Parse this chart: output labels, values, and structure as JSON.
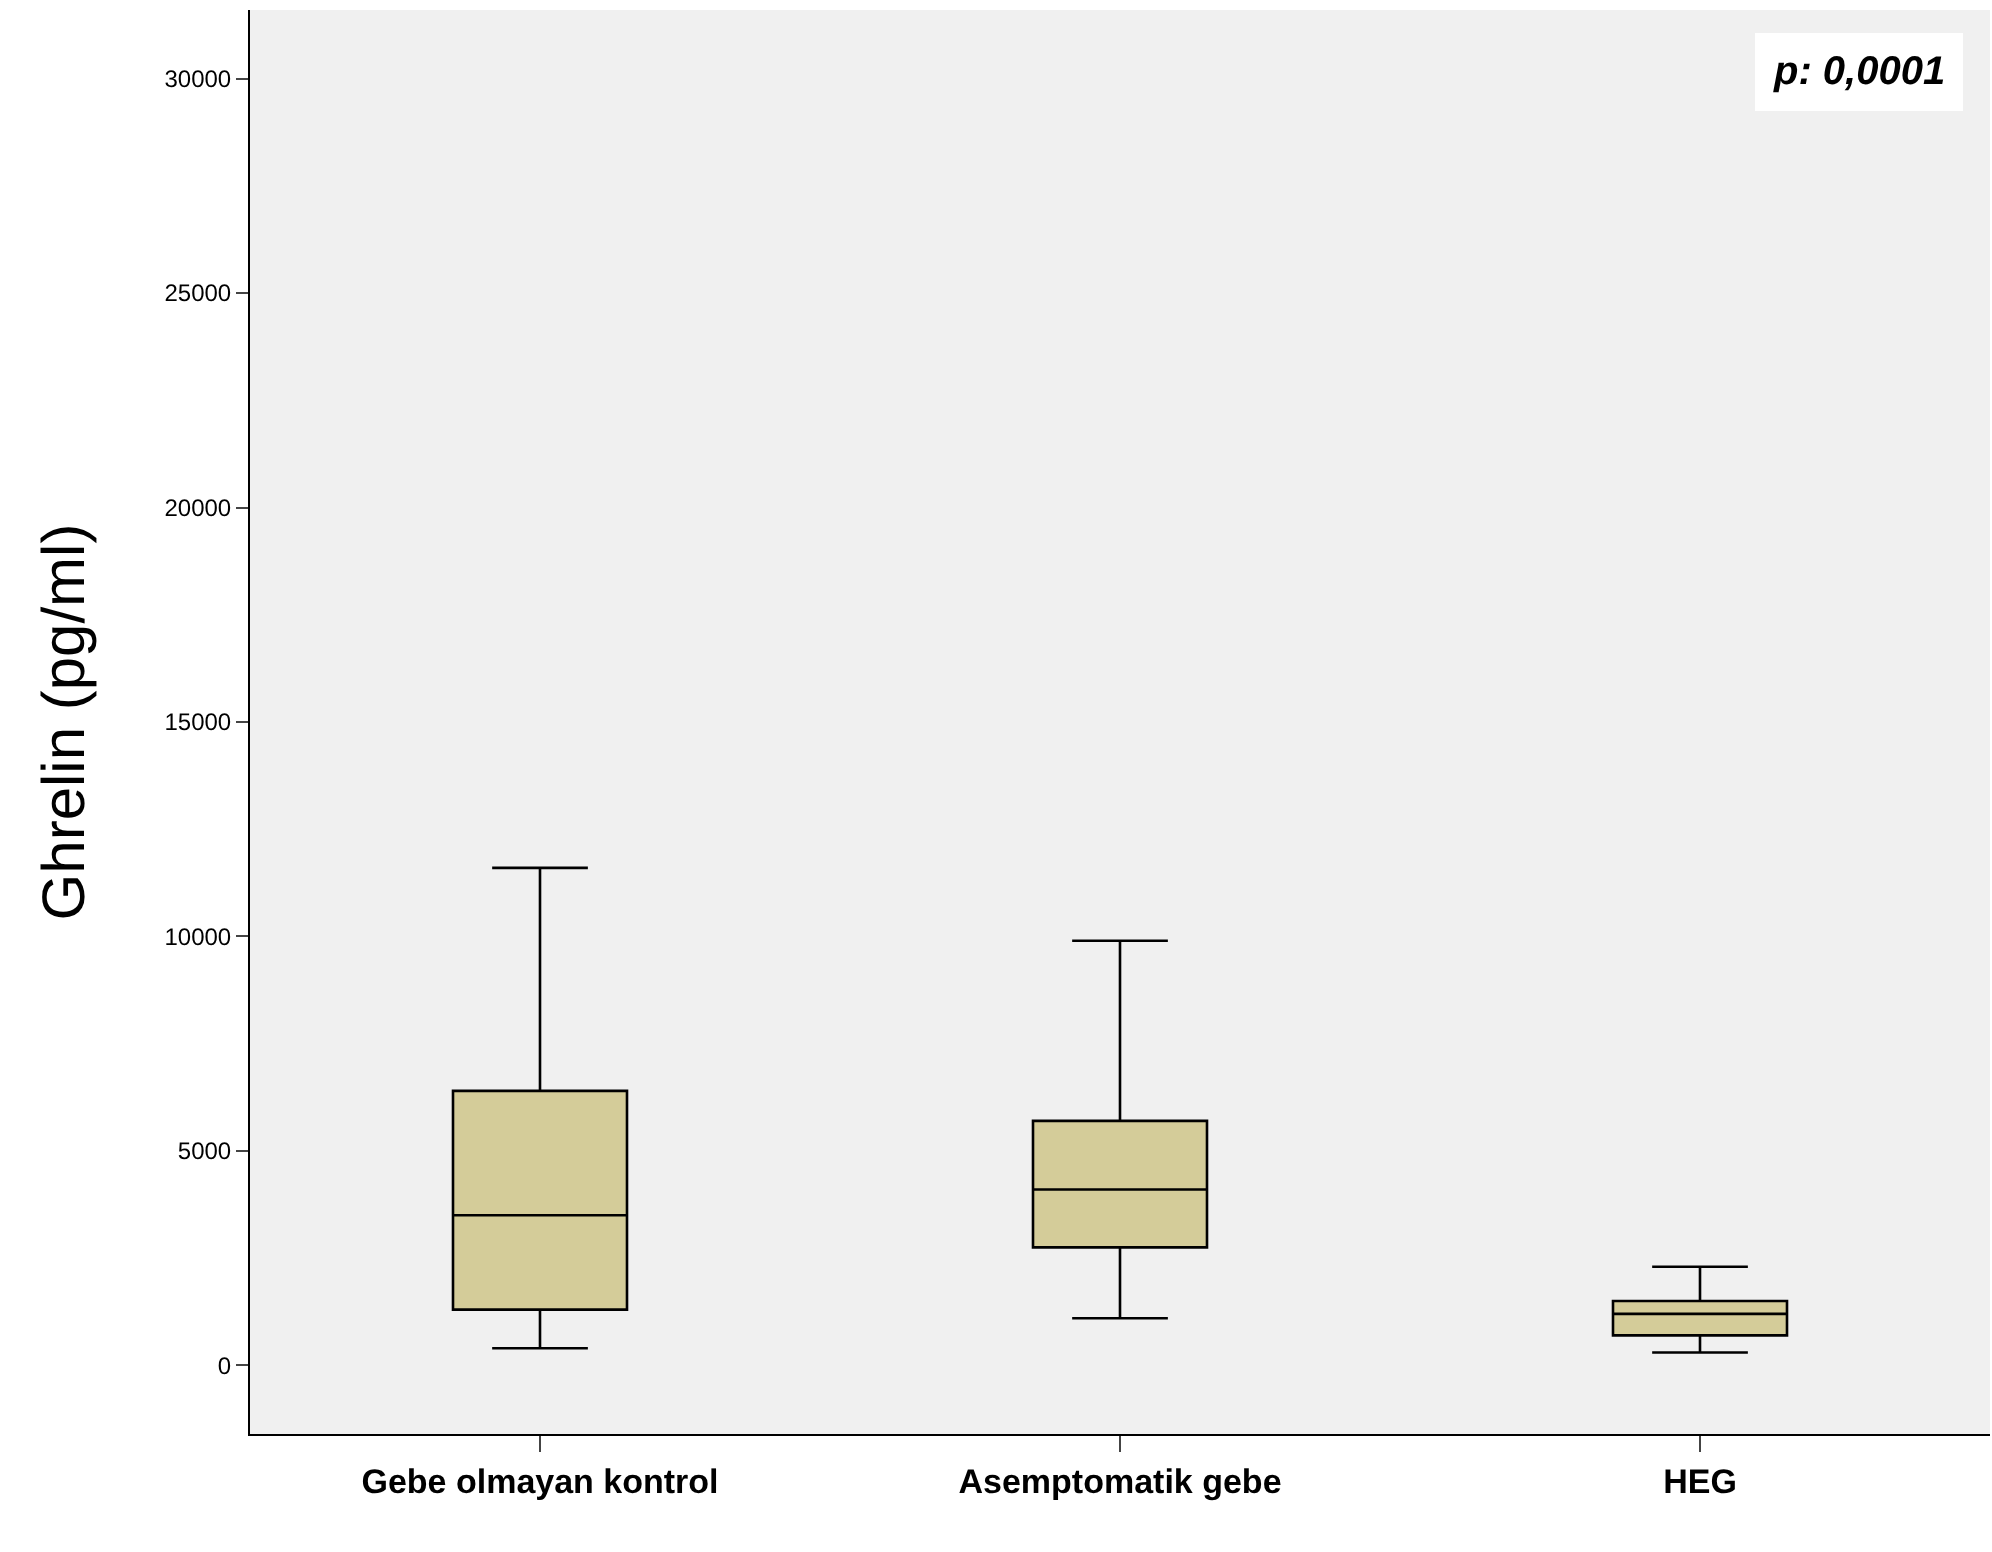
{
  "chart_data": {
    "type": "box",
    "ylabel": "Ghrelin (pg/ml)",
    "categories": [
      "Gebe olmayan kontrol",
      "Asemptomatik gebe",
      "HEG"
    ],
    "boxes": [
      {
        "low": 400,
        "q1": 1300,
        "median": 3500,
        "q3": 6400,
        "high": 11600
      },
      {
        "low": 1100,
        "q1": 2750,
        "median": 4100,
        "q3": 5700,
        "high": 9900
      },
      {
        "low": 300,
        "q1": 700,
        "median": 1200,
        "q3": 1500,
        "high": 2300
      }
    ],
    "color": "#d4cc99",
    "ylim": [
      -1600,
      31600
    ],
    "yticks": [
      0,
      5000,
      10000,
      15000,
      20000,
      25000,
      30000
    ],
    "grid": false,
    "annotations": [
      "p: 0,0001"
    ]
  }
}
